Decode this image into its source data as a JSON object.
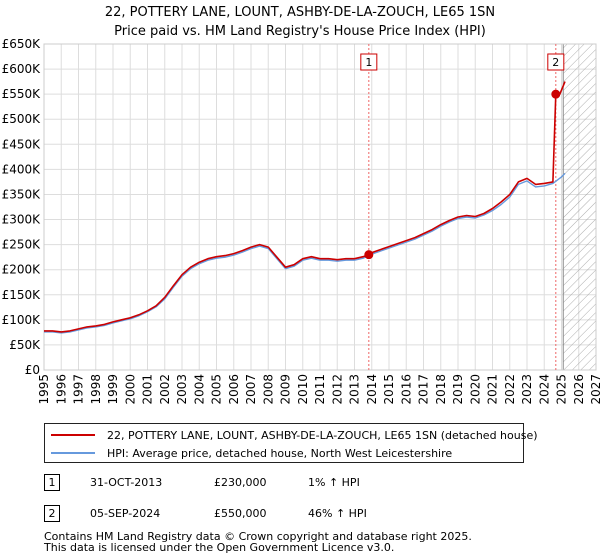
{
  "title": "22, POTTERY LANE, LOUNT, ASHBY-DE-LA-ZOUCH, LE65 1SN",
  "subtitle": "Price paid vs. HM Land Registry's House Price Index (HPI)",
  "colors": {
    "property": "#cc0000",
    "hpi": "#6699dd",
    "marker_line": "#ee6666",
    "grid": "#dddddd",
    "hatch": "#999999"
  },
  "chart_data": {
    "type": "line",
    "x_min": 1995,
    "x_max": 2027,
    "ylim": [
      0,
      650000
    ],
    "y_ticks": [
      0,
      50000,
      100000,
      150000,
      200000,
      250000,
      300000,
      350000,
      400000,
      450000,
      500000,
      550000,
      600000,
      650000
    ],
    "y_tick_labels": [
      "£0",
      "£50K",
      "£100K",
      "£150K",
      "£200K",
      "£250K",
      "£300K",
      "£350K",
      "£400K",
      "£450K",
      "£500K",
      "£550K",
      "£600K",
      "£650K"
    ],
    "x_ticks": [
      1995,
      1996,
      1997,
      1998,
      1999,
      2000,
      2001,
      2002,
      2003,
      2004,
      2005,
      2006,
      2007,
      2008,
      2009,
      2010,
      2011,
      2012,
      2013,
      2014,
      2015,
      2016,
      2017,
      2018,
      2019,
      2020,
      2021,
      2022,
      2023,
      2024,
      2025,
      2026,
      2027
    ],
    "x_tick_labels": [
      "1995",
      "1996",
      "1997",
      "1998",
      "1999",
      "2000",
      "2001",
      "2002",
      "2003",
      "2004",
      "2005",
      "2006",
      "2007",
      "2008",
      "2009",
      "2010",
      "2011",
      "2012",
      "2013",
      "2014",
      "2015",
      "2016",
      "2017",
      "2018",
      "2019",
      "2020",
      "2021",
      "2022",
      "2023",
      "2024",
      "2025",
      "2026",
      "2027"
    ],
    "future_start": 2025.1,
    "series": [
      {
        "name": "22, POTTERY LANE, LOUNT, ASHBY-DE-LA-ZOUCH, LE65 1SN (detached house)",
        "x": [
          1995.0,
          1995.5,
          1996.0,
          1996.5,
          1997.0,
          1997.5,
          1998.0,
          1998.5,
          1999.0,
          1999.5,
          2000.0,
          2000.5,
          2001.0,
          2001.5,
          2002.0,
          2002.5,
          2003.0,
          2003.5,
          2004.0,
          2004.5,
          2005.0,
          2005.5,
          2006.0,
          2006.5,
          2007.0,
          2007.5,
          2008.0,
          2008.5,
          2009.0,
          2009.5,
          2010.0,
          2010.5,
          2011.0,
          2011.5,
          2012.0,
          2012.5,
          2013.0,
          2013.5,
          2013.83,
          2014.0,
          2014.5,
          2015.0,
          2015.5,
          2016.0,
          2016.5,
          2017.0,
          2017.5,
          2018.0,
          2018.5,
          2019.0,
          2019.5,
          2020.0,
          2020.5,
          2021.0,
          2021.5,
          2022.0,
          2022.5,
          2023.0,
          2023.5,
          2024.0,
          2024.5,
          2024.67,
          2024.9,
          2025.2
        ],
        "values": [
          78000,
          78000,
          76000,
          78000,
          82000,
          86000,
          88000,
          91000,
          96000,
          100000,
          104000,
          110000,
          118000,
          128000,
          145000,
          168000,
          190000,
          205000,
          215000,
          222000,
          226000,
          228000,
          232000,
          238000,
          245000,
          250000,
          245000,
          225000,
          205000,
          210000,
          222000,
          226000,
          222000,
          222000,
          220000,
          222000,
          222000,
          226000,
          230000,
          234000,
          240000,
          246000,
          252000,
          258000,
          264000,
          272000,
          280000,
          290000,
          298000,
          305000,
          308000,
          306000,
          312000,
          322000,
          335000,
          350000,
          375000,
          382000,
          370000,
          372000,
          375000,
          550000,
          550000,
          575000
        ]
      },
      {
        "name": "HPI: Average price, detached house, North West Leicestershire",
        "x": [
          1995.0,
          1995.5,
          1996.0,
          1996.5,
          1997.0,
          1997.5,
          1998.0,
          1998.5,
          1999.0,
          1999.5,
          2000.0,
          2000.5,
          2001.0,
          2001.5,
          2002.0,
          2002.5,
          2003.0,
          2003.5,
          2004.0,
          2004.5,
          2005.0,
          2005.5,
          2006.0,
          2006.5,
          2007.0,
          2007.5,
          2008.0,
          2008.5,
          2009.0,
          2009.5,
          2010.0,
          2010.5,
          2011.0,
          2011.5,
          2012.0,
          2012.5,
          2013.0,
          2013.5,
          2014.0,
          2014.5,
          2015.0,
          2015.5,
          2016.0,
          2016.5,
          2017.0,
          2017.5,
          2018.0,
          2018.5,
          2019.0,
          2019.5,
          2020.0,
          2020.5,
          2021.0,
          2021.5,
          2022.0,
          2022.5,
          2023.0,
          2023.5,
          2024.0,
          2024.5,
          2025.0,
          2025.2
        ],
        "values": [
          76000,
          76000,
          74000,
          76000,
          80000,
          84000,
          86000,
          89000,
          94000,
          98000,
          102000,
          108000,
          116000,
          126000,
          142000,
          165000,
          187000,
          202000,
          212000,
          219000,
          223000,
          225000,
          229000,
          235000,
          242000,
          247000,
          242000,
          222000,
          202000,
          207000,
          219000,
          223000,
          219000,
          219000,
          217000,
          219000,
          219000,
          223000,
          231000,
          237000,
          243000,
          249000,
          255000,
          261000,
          269000,
          277000,
          287000,
          295000,
          302000,
          305000,
          303000,
          309000,
          318000,
          330000,
          345000,
          370000,
          377000,
          365000,
          367000,
          372000,
          385000,
          392000
        ]
      }
    ],
    "markers": [
      {
        "label": "1",
        "x": 2013.83,
        "y": 230000
      },
      {
        "label": "2",
        "x": 2024.67,
        "y": 550000
      }
    ]
  },
  "legend": {
    "property_label": "22, POTTERY LANE, LOUNT, ASHBY-DE-LA-ZOUCH, LE65 1SN (detached house)",
    "hpi_label": "HPI: Average price, detached house, North West Leicestershire"
  },
  "transactions": [
    {
      "num": "1",
      "date": "31-OCT-2013",
      "price": "£230,000",
      "hpi": "1% ↑ HPI"
    },
    {
      "num": "2",
      "date": "05-SEP-2024",
      "price": "£550,000",
      "hpi": "46% ↑ HPI"
    }
  ],
  "footer": {
    "line1": "Contains HM Land Registry data © Crown copyright and database right 2025.",
    "line2": "This data is licensed under the Open Government Licence v3.0."
  }
}
